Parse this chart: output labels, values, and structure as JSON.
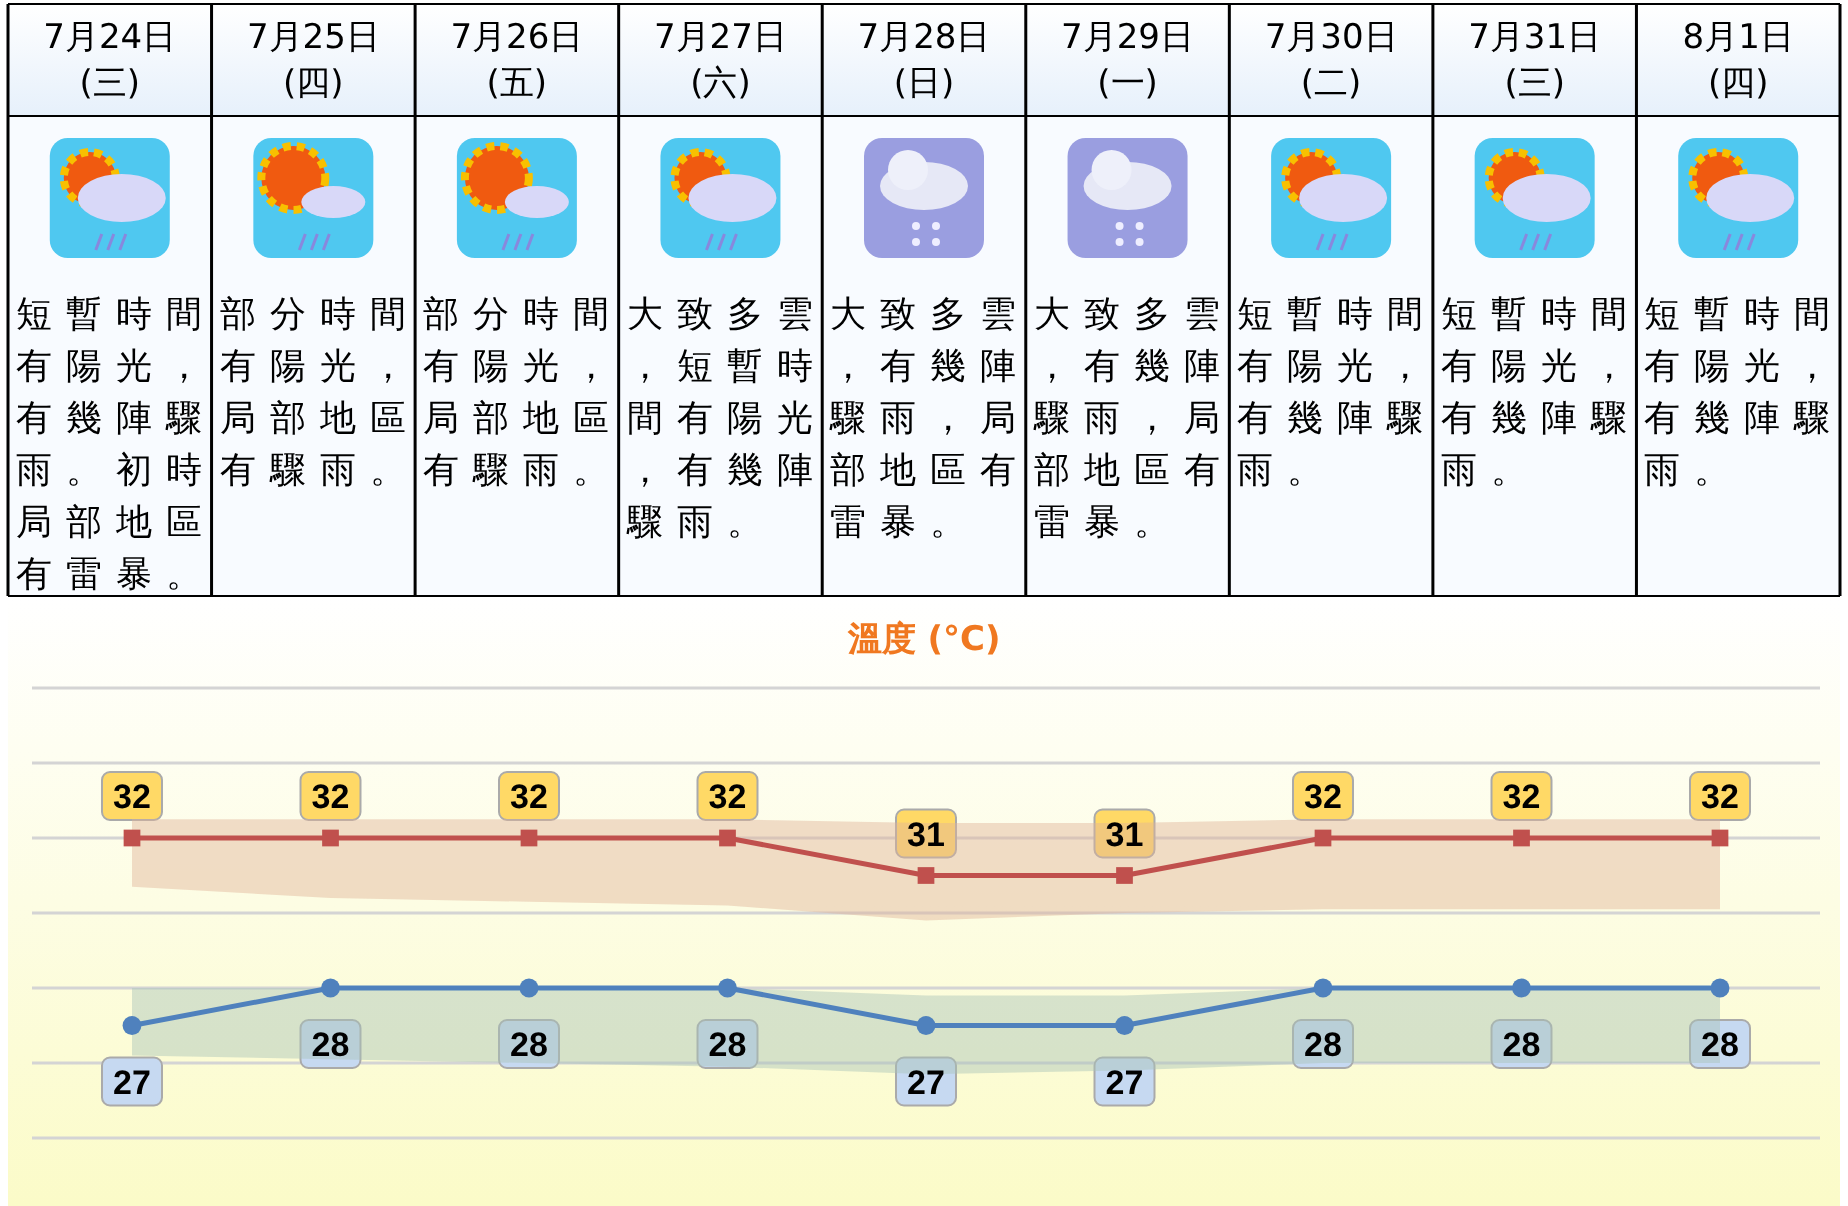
{
  "chart_data": {
    "type": "line",
    "title": "溫度 (°C)",
    "categories": [
      "7月24日 (三)",
      "7月25日 (四)",
      "7月26日 (五)",
      "7月27日 (六)",
      "7月28日 (日)",
      "7月29日 (一)",
      "7月30日 (二)",
      "7月31日 (三)",
      "8月1日 (四)"
    ],
    "annotations": [
      "短暫時間有陽光，有幾陣驟雨。初時局部地區有雷暴。",
      "部分時間有陽光，局部地區有驟雨。",
      "部分時間有陽光，局部地區有驟雨。",
      "大致多雲，短暫時間有陽光，有幾陣驟雨。",
      "大致多雲，有幾陣驟雨，局部地區有雷暴。",
      "大致多雲，有幾陣驟雨，局部地區有雷暴。",
      "短暫時間有陽光，有幾陣驟雨。",
      "短暫時間有陽光，有幾陣驟雨。",
      "短暫時間有陽光，有幾陣驟雨。"
    ],
    "series": [
      {
        "color": "#c0504d",
        "marker": "square",
        "values": [
          32,
          32,
          32,
          32,
          31,
          31,
          32,
          32,
          32
        ],
        "upper": [
          32.5,
          32.5,
          32.5,
          32.5,
          32.4,
          32.4,
          32.5,
          32.5,
          32.5
        ],
        "lower": [
          30.7,
          30.4,
          30.3,
          30.2,
          29.8,
          30.0,
          30.1,
          30.1,
          30.1
        ]
      },
      {
        "color": "#4f81bd",
        "marker": "circle",
        "values": [
          27,
          28,
          28,
          28,
          27,
          27,
          28,
          28,
          28
        ],
        "upper": [
          28.0,
          28.0,
          28.0,
          28.0,
          27.8,
          27.8,
          28.0,
          28.0,
          28.0
        ],
        "lower": [
          26.2,
          26.1,
          26.0,
          25.9,
          25.7,
          25.8,
          26.0,
          26.0,
          26.0
        ]
      }
    ],
    "ylim": [
      24,
      36
    ],
    "yticks": [
      {
        "value": 24,
        "label": null
      },
      {
        "value": 26,
        "label": null
      },
      {
        "value": 28,
        "label": null
      },
      {
        "value": 30,
        "label": null
      },
      {
        "value": 32,
        "label": null
      },
      {
        "value": 34,
        "label": null
      },
      {
        "value": 36,
        "label": null
      }
    ],
    "grid": "y",
    "tick_labels": "x",
    "data_labels": true
  }
}
